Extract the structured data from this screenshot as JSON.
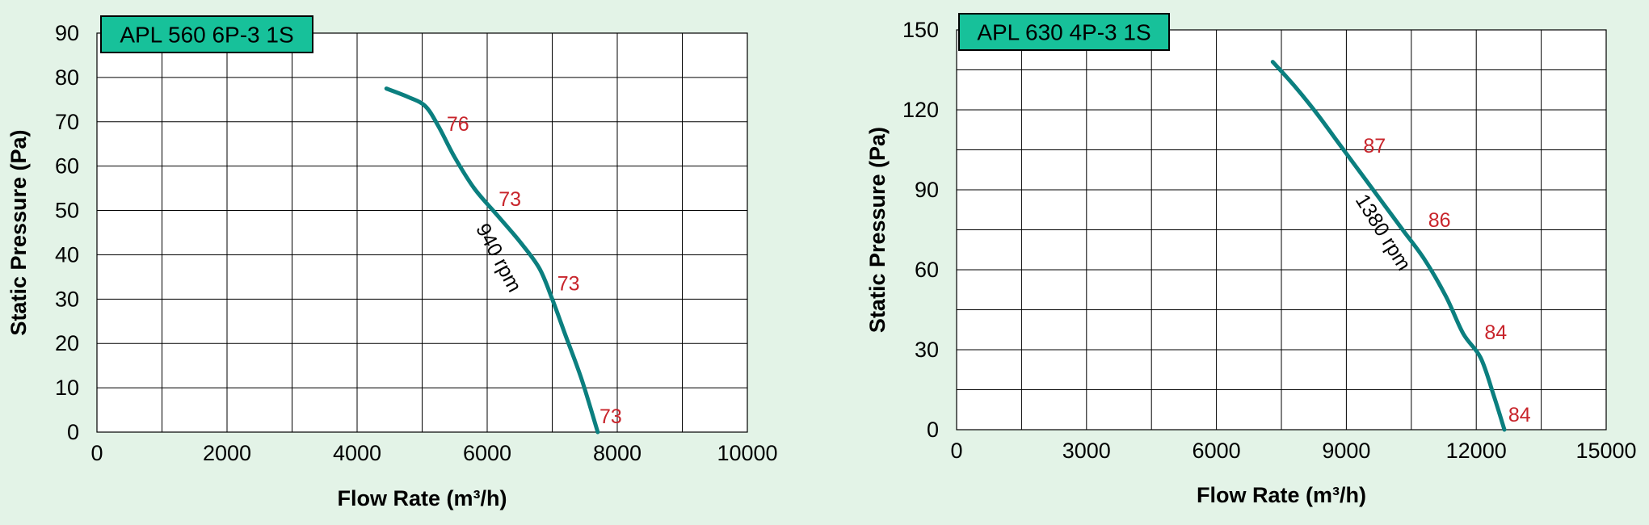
{
  "chart_data": [
    {
      "type": "line",
      "title": "APL 560 6P-3 1S",
      "xlabel": "Flow Rate (m³/h)",
      "ylabel": "Static Pressure (Pa)",
      "xlim": [
        0,
        10000
      ],
      "ylim": [
        0,
        90
      ],
      "x_ticks": [
        "0",
        "2000",
        "4000",
        "6000",
        "8000",
        "10000"
      ],
      "y_ticks": [
        "0",
        "10",
        "20",
        "30",
        "40",
        "50",
        "60",
        "70",
        "80",
        "90"
      ],
      "grid": true,
      "curve_color": "#0b7f7f",
      "series": [
        {
          "name": "940 rpm",
          "x": [
            4450,
            4800,
            5050,
            5250,
            5500,
            5800,
            6150,
            6500,
            6800,
            7000,
            7200,
            7450,
            7700
          ],
          "y": [
            77.5,
            75.5,
            73.5,
            69,
            62,
            55,
            49,
            43,
            37,
            30,
            22,
            12,
            0
          ]
        }
      ],
      "annotations": [
        {
          "text": "76",
          "x": 5550,
          "y": 68
        },
        {
          "text": "73",
          "x": 6350,
          "y": 51
        },
        {
          "text": "73",
          "x": 7250,
          "y": 32
        },
        {
          "text": "73",
          "x": 7900,
          "y": 2
        }
      ]
    },
    {
      "type": "line",
      "title": "APL 630 4P-3 1S",
      "xlabel": "Flow Rate (m³/h)",
      "ylabel": "Static Pressure (Pa)",
      "xlim": [
        0,
        15000
      ],
      "ylim": [
        0,
        150
      ],
      "x_ticks": [
        "0",
        "3000",
        "6000",
        "9000",
        "12000",
        "15000"
      ],
      "y_ticks": [
        "0",
        "30",
        "60",
        "90",
        "120",
        "150"
      ],
      "grid": true,
      "curve_color": "#0b7f7f",
      "series": [
        {
          "name": "1380 rpm",
          "x": [
            7300,
            7800,
            8300,
            8800,
            9300,
            9800,
            10300,
            10800,
            11300,
            11700,
            12100,
            12400,
            12650
          ],
          "y": [
            138,
            129,
            119,
            108,
            97,
            86,
            75,
            64,
            50,
            36,
            27,
            13,
            0
          ]
        }
      ],
      "annotations": [
        {
          "text": "87",
          "x": 9650,
          "y": 104
        },
        {
          "text": "86",
          "x": 11150,
          "y": 76
        },
        {
          "text": "84",
          "x": 12450,
          "y": 34
        },
        {
          "text": "84",
          "x": 13000,
          "y": 3
        }
      ]
    }
  ]
}
